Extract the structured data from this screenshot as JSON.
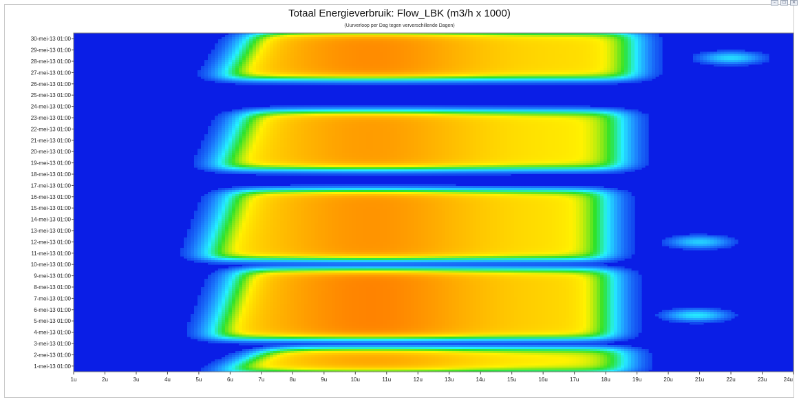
{
  "window": {
    "buttons": [
      {
        "name": "minimize",
        "glyph": "–"
      },
      {
        "name": "restore",
        "glyph": "▢"
      },
      {
        "name": "close",
        "glyph": "✕"
      }
    ]
  },
  "chart_data": {
    "type": "heatmap",
    "title": "Totaal Energieverbruik: Flow_LBK (m3/h x 1000)",
    "subtitle": "(Uurverloop per Dag tegen ververschillende Dagen)",
    "x_tick_labels": [
      "1u",
      "2u",
      "3u",
      "4u",
      "5u",
      "6u",
      "7u",
      "8u",
      "9u",
      "10u",
      "11u",
      "12u",
      "13u",
      "14u",
      "15u",
      "16u",
      "17u",
      "18u",
      "19u",
      "20u",
      "21u",
      "22u",
      "23u",
      "24u"
    ],
    "y_tick_labels": [
      "1-mei-13 01:00",
      "2-mei-13 01:00",
      "3-mei-13 01:00",
      "4-mei-13 01:00",
      "5-mei-13 01:00",
      "6-mei-13 01:00",
      "7-mei-13 01:00",
      "8-mei-13 01:00",
      "9-mei-13 01:00",
      "10-mei-13 01:00",
      "11-mei-13 01:00",
      "12-mei-13 01:00",
      "13-mei-13 01:00",
      "14-mei-13 01:00",
      "15-mei-13 01:00",
      "16-mei-13 01:00",
      "17-mei-13 01:00",
      "18-mei-13 01:00",
      "19-mei-13 01:00",
      "20-mei-13 01:00",
      "21-mei-13 01:00",
      "22-mei-13 01:00",
      "23-mei-13 01:00",
      "24-mei-13 01:00",
      "25-mei-13 01:00",
      "26-mei-13 01:00",
      "27-mei-13 01:00",
      "28-mei-13 01:00",
      "29-mei-13 01:00",
      "30-mei-13 01:00"
    ],
    "x_range": [
      1,
      24
    ],
    "y_range": [
      "1-mei-13",
      "30-mei-13"
    ],
    "colormap": [
      "#0a1ee6",
      "#1f8cff",
      "#25f0ff",
      "#2fe22a",
      "#fff200",
      "#ffb000",
      "#ff6a00"
    ],
    "value_scale": "relative 0-1 (no colorbar shown)",
    "legend": "none",
    "grid": false,
    "blocks": [
      {
        "day_start": 1,
        "day_end": 2,
        "start_hour": 6.1,
        "end_hour": 18.6,
        "peak": 0.86
      },
      {
        "day_start": 4,
        "day_end": 9,
        "start_hour": 5.5,
        "end_hour": 18.2,
        "peak": 0.94
      },
      {
        "day_start": 11,
        "day_end": 16,
        "start_hour": 5.3,
        "end_hour": 18.0,
        "peak": 0.9
      },
      {
        "day_start": 19,
        "day_end": 23,
        "start_hour": 5.7,
        "end_hour": 18.5,
        "peak": 0.88
      },
      {
        "day_start": 27,
        "day_end": 30,
        "start_hour": 5.9,
        "end_hour": 18.9,
        "peak": 0.92
      }
    ],
    "evening_blobs": [
      {
        "day": 5.5,
        "hour": 20.9,
        "value": 0.32
      },
      {
        "day": 12,
        "hour": 21.0,
        "value": 0.28
      },
      {
        "day": 28.3,
        "hour": 22.0,
        "value": 0.3
      }
    ]
  }
}
